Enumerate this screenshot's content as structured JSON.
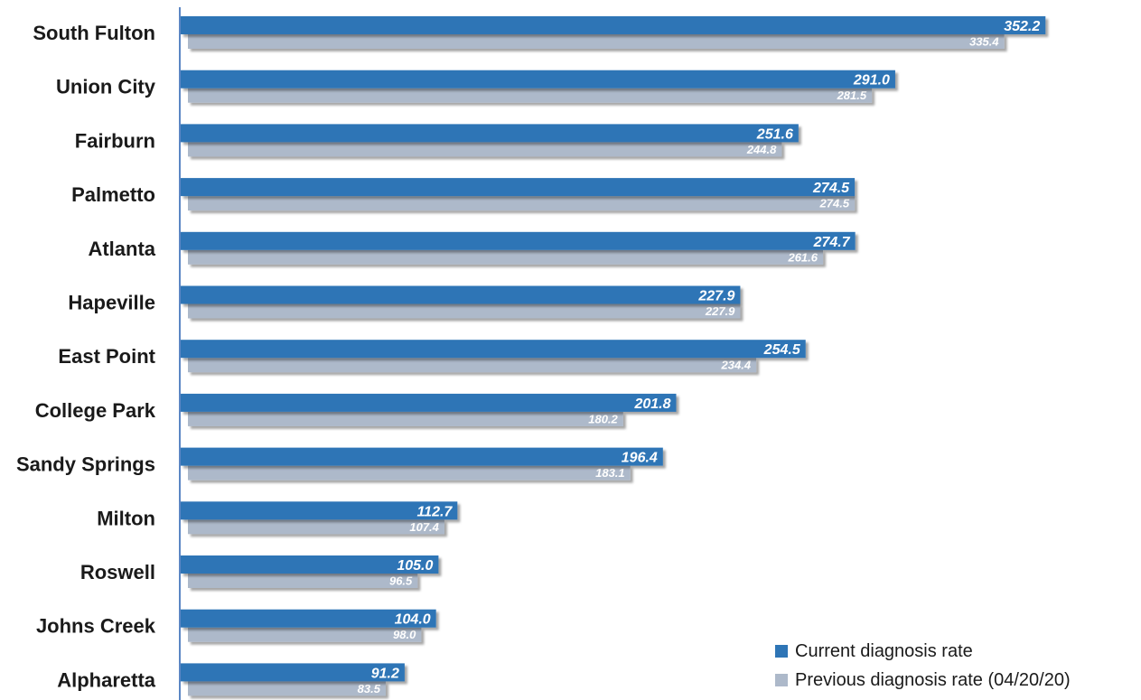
{
  "chart_data": {
    "type": "bar",
    "orientation": "horizontal",
    "categories": [
      "South Fulton",
      "Union City",
      "Fairburn",
      "Palmetto",
      "Atlanta",
      "Hapeville",
      "East Point",
      "College Park",
      "Sandy Springs",
      "Milton",
      "Roswell",
      "Johns Creek",
      "Alpharetta"
    ],
    "series": [
      {
        "name": "Current diagnosis rate",
        "color": "#2e75b6",
        "values": [
          352.2,
          291.0,
          251.6,
          274.5,
          274.7,
          227.9,
          254.5,
          201.8,
          196.4,
          112.7,
          105.0,
          104.0,
          91.2
        ],
        "labels": [
          "352.2",
          "291.0",
          "251.6",
          "274.5",
          "274.7",
          "227.9",
          "254.5",
          "201.8",
          "196.4",
          "112.7",
          "105.0",
          "104.0",
          "91.2"
        ]
      },
      {
        "name": "Previous diagnosis rate (04/20/20)",
        "color": "#adb9ca",
        "values": [
          335.4,
          281.5,
          244.8,
          274.5,
          261.6,
          227.9,
          234.4,
          180.2,
          183.1,
          107.4,
          96.5,
          98.0,
          83.5
        ],
        "labels": [
          "335.4",
          "281.5",
          "244.8",
          "274.5",
          "261.6",
          "227.9",
          "234.4",
          "180.2",
          "183.1",
          "107.4",
          "96.5",
          "98.0",
          "83.5"
        ]
      }
    ],
    "title": "",
    "xlabel": "",
    "ylabel": "",
    "xlim": [
      0,
      395
    ],
    "grid": false,
    "legend_position": "bottom-right"
  }
}
